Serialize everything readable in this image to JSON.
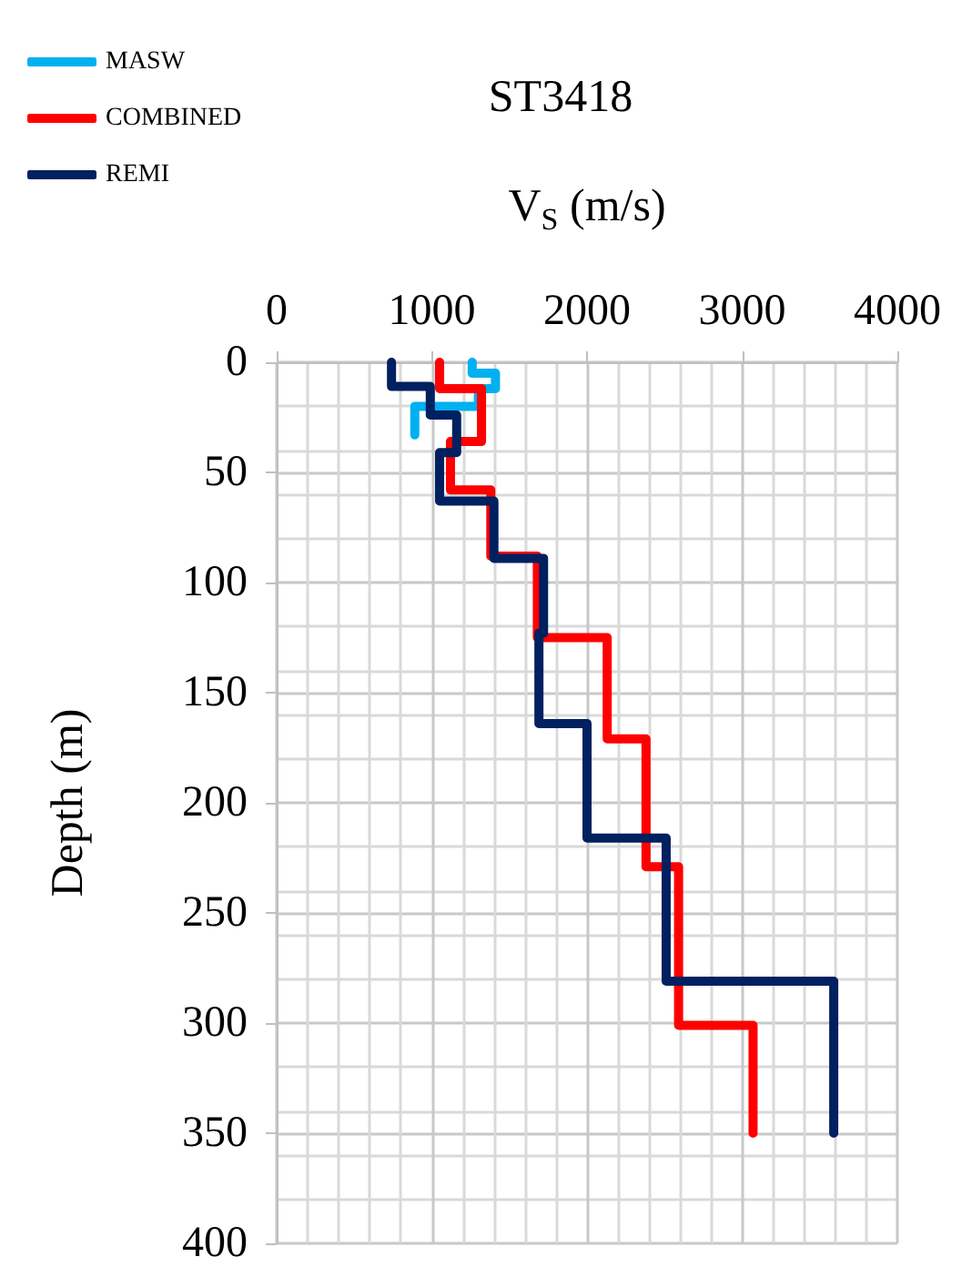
{
  "chart_data": {
    "type": "line",
    "title": "ST3418",
    "xlabel": "V$_{S}$ (m/s)",
    "ylabel": "Depth (m)",
    "xlim": [
      0,
      4000
    ],
    "xticks": [
      0,
      1000,
      2000,
      3000,
      4000
    ],
    "ylim": [
      400,
      0
    ],
    "yticks": [
      0,
      50,
      100,
      150,
      200,
      250,
      300,
      350,
      400
    ],
    "grid": true,
    "legend": "top left",
    "marker": "none",
    "line_style": "solid",
    "series": [
      {
        "name": "MASW",
        "color": "#00b0f0",
        "x": [
          1260,
          1260,
          1410,
          1410,
          1300,
          1300,
          890,
          890
        ],
        "values": [
          0,
          5,
          5,
          12,
          12,
          20,
          20,
          33
        ]
      },
      {
        "name": "COMBINED",
        "color": "#ff0000",
        "x": [
          1050,
          1050,
          1320,
          1320,
          1120,
          1120,
          1380,
          1380,
          1680,
          1680,
          2130,
          2130,
          2380,
          2380,
          2590,
          2590,
          3070,
          3070
        ],
        "values": [
          0,
          12,
          12,
          36,
          36,
          58,
          58,
          88,
          88,
          125,
          125,
          171,
          171,
          229,
          229,
          301,
          301,
          350
        ]
      },
      {
        "name": "REMI",
        "color": "#002060",
        "x": [
          740,
          740,
          990,
          990,
          1160,
          1160,
          1050,
          1050,
          1400,
          1400,
          1720,
          1720,
          1690,
          1690,
          2000,
          2000,
          2510,
          2510,
          3590,
          3590
        ],
        "values": [
          0,
          11,
          11,
          24,
          24,
          41,
          41,
          63,
          63,
          89,
          89,
          123,
          123,
          164,
          164,
          216,
          216,
          281,
          281,
          350
        ]
      }
    ]
  }
}
